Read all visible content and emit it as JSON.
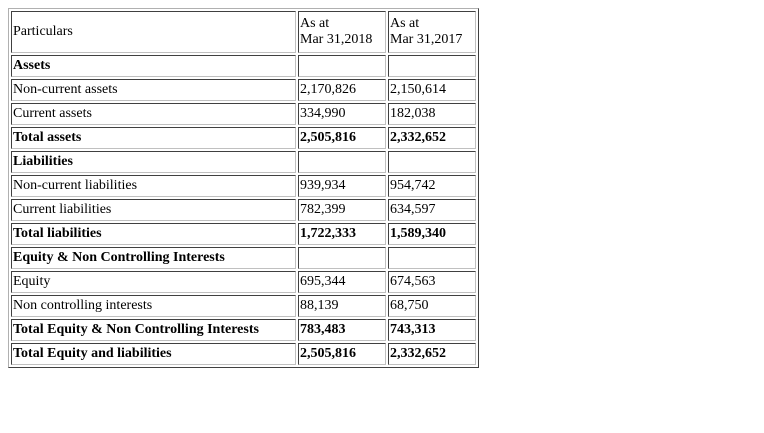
{
  "table": {
    "header": {
      "particulars": "Particulars",
      "col2_line1": "As at",
      "col2_line2": "Mar 31,2018",
      "col3_line1": "As at",
      "col3_line2": "Mar 31,2017"
    },
    "rows": [
      {
        "label": "Assets",
        "v2018": "",
        "v2017": "",
        "bold": true
      },
      {
        "label": "Non-current assets",
        "v2018": "2,170,826",
        "v2017": "2,150,614",
        "bold": false
      },
      {
        "label": "Current assets",
        "v2018": "334,990",
        "v2017": "182,038",
        "bold": false
      },
      {
        "label": "Total assets",
        "v2018": "2,505,816",
        "v2017": "2,332,652",
        "bold": true
      },
      {
        "label": "Liabilities",
        "v2018": "",
        "v2017": "",
        "bold": true
      },
      {
        "label": "Non-current liabilities",
        "v2018": "939,934",
        "v2017": "954,742",
        "bold": false
      },
      {
        "label": "Current liabilities",
        "v2018": "782,399",
        "v2017": "634,597",
        "bold": false
      },
      {
        "label": "Total liabilities",
        "v2018": "1,722,333",
        "v2017": "1,589,340",
        "bold": true
      },
      {
        "label": "Equity & Non Controlling Interests",
        "v2018": "",
        "v2017": "",
        "bold": true
      },
      {
        "label": "Equity",
        "v2018": "695,344",
        "v2017": "674,563",
        "bold": false
      },
      {
        "label": "Non controlling interests",
        "v2018": "88,139",
        "v2017": "68,750",
        "bold": false
      },
      {
        "label": "Total Equity & Non Controlling Interests",
        "v2018": "783,483",
        "v2017": "743,313",
        "bold": true
      },
      {
        "label": "Total Equity and liabilities",
        "v2018": "2,505,816",
        "v2017": "2,332,652",
        "bold": true
      }
    ]
  }
}
